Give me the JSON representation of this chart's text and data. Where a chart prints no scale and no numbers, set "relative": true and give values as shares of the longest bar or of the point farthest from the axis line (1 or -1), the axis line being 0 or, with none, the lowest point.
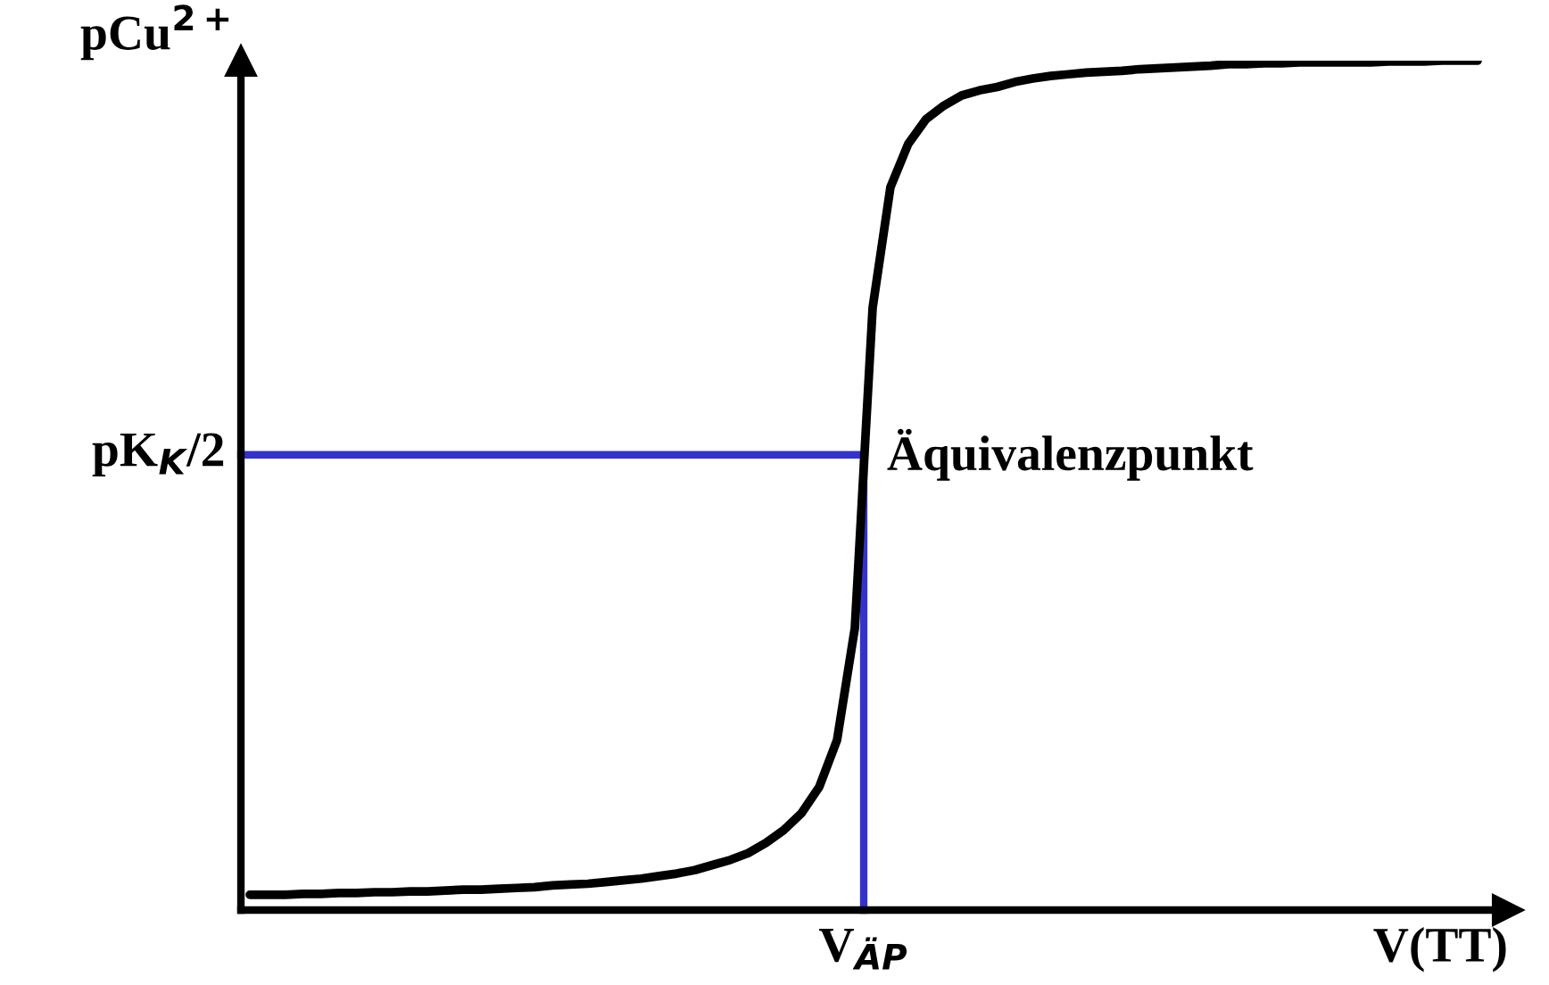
{
  "chart_data": {
    "type": "line",
    "relative": true,
    "ylabel": "pCu$^{2+}$",
    "xlabel": "V(TT)",
    "categories": [
      null,
      null,
      null,
      null,
      null,
      null,
      null,
      null,
      null,
      null,
      null,
      null,
      null,
      null,
      null,
      null,
      null,
      null,
      null,
      null,
      null,
      null,
      null,
      null,
      null,
      null,
      null,
      null,
      null,
      null,
      null,
      null,
      null,
      null,
      null,
      null,
      null,
      null,
      null,
      null,
      null,
      null,
      null,
      null,
      null,
      null,
      null,
      null,
      null,
      null,
      null,
      null,
      null,
      null,
      null,
      null,
      null,
      null,
      null,
      null,
      null,
      null,
      null,
      null,
      null,
      null,
      null,
      null,
      null,
      null
    ],
    "series": [
      {
        "color": "#000000",
        "values": [
          0.018,
          0.018,
          0.018,
          0.019,
          0.019,
          0.02,
          0.02,
          0.021,
          0.021,
          0.022,
          0.022,
          0.023,
          0.024,
          0.024,
          0.025,
          0.026,
          0.027,
          0.029,
          0.03,
          0.031,
          0.033,
          0.035,
          0.037,
          0.04,
          0.043,
          0.047,
          0.053,
          0.059,
          0.067,
          0.079,
          0.094,
          0.114,
          0.145,
          0.2,
          0.332,
          0.709,
          0.851,
          0.902,
          0.931,
          0.947,
          0.959,
          0.965,
          0.969,
          0.975,
          0.979,
          0.982,
          0.984,
          0.986,
          0.987,
          0.988,
          0.99,
          0.991,
          0.992,
          0.993,
          0.994,
          0.996,
          0.996,
          0.997,
          0.997,
          0.998,
          0.998,
          0.998,
          0.998,
          0.998,
          0.999,
          0.999,
          0.999,
          1,
          1,
          1
        ]
      }
    ],
    "ref_lines": [
      {
        "axis": "y",
        "value": 0.536,
        "label": "pK$_{K}$/2",
        "color": "#3333cc"
      }
    ],
    "annotations": [
      "V$_{ÄP}$",
      "Äquivalenzpunkt"
    ],
    "marker": "none",
    "line_style": "solid"
  }
}
